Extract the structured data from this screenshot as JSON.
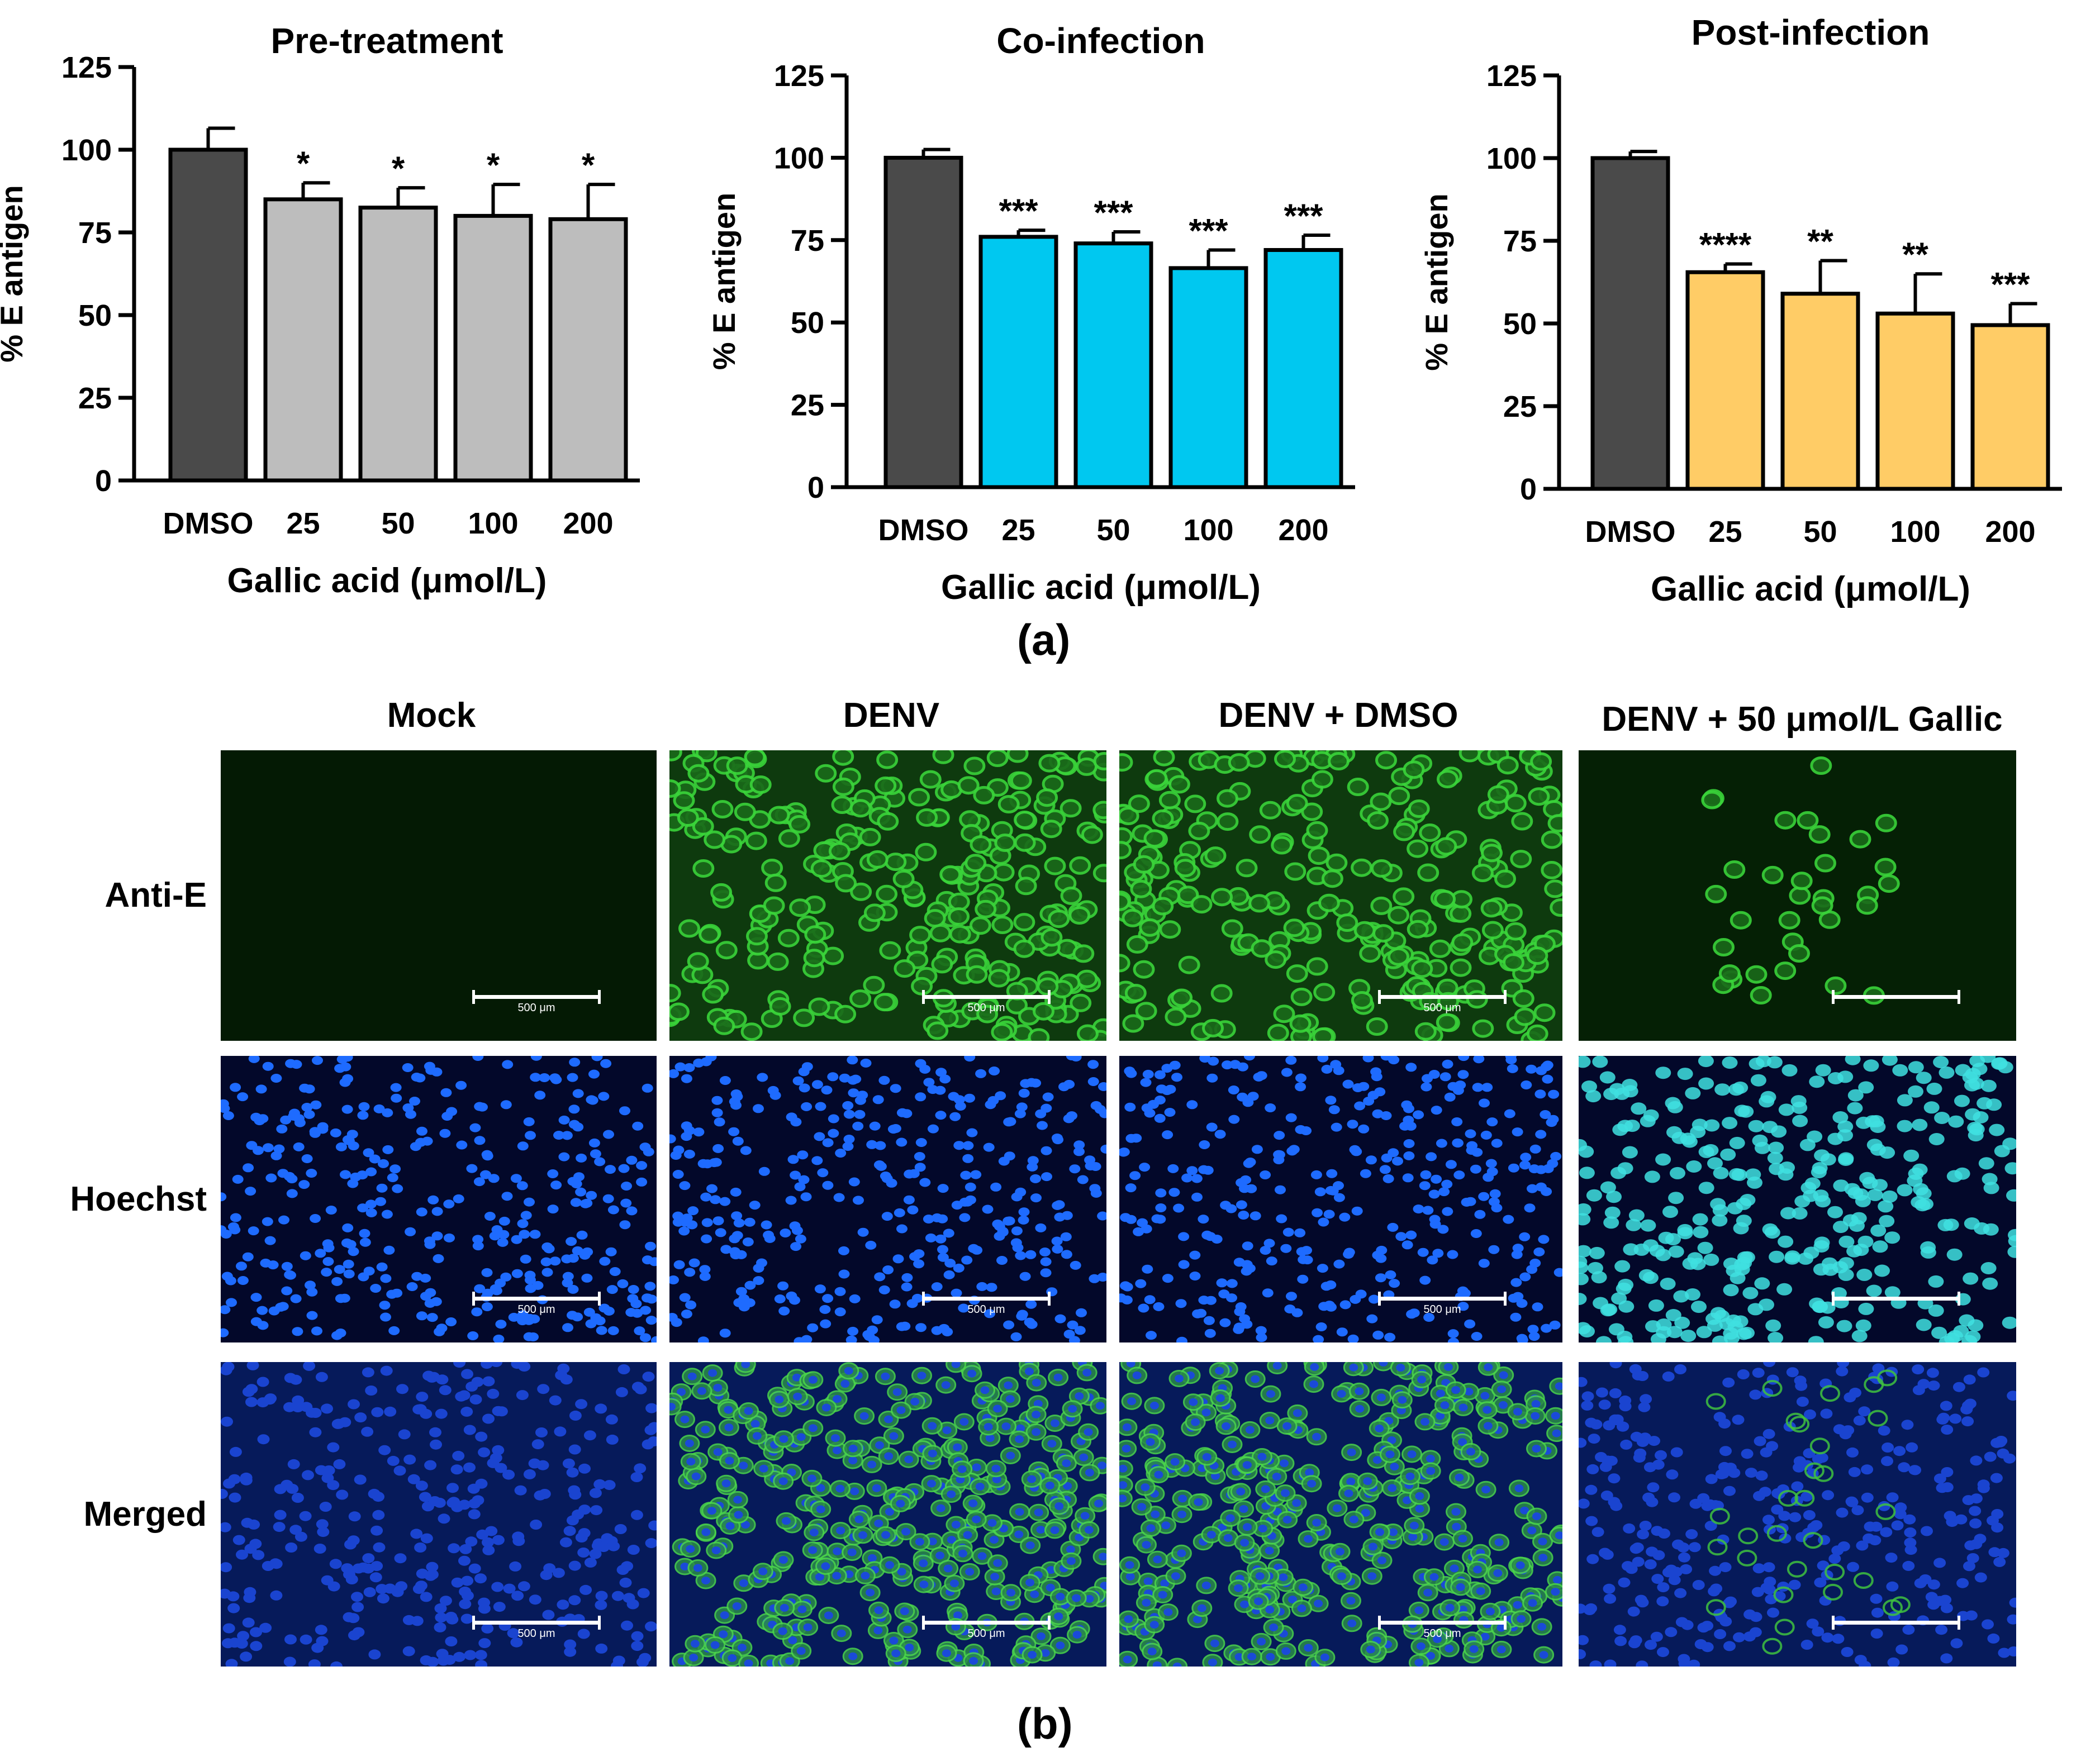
{
  "chart_data": [
    {
      "type": "bar",
      "title": "Pre-treatment",
      "xlabel": "Gallic acid (μmol/L)",
      "ylabel": "% E antigen",
      "categories": [
        "DMSO",
        "25",
        "50",
        "100",
        "200"
      ],
      "values": [
        100,
        85,
        82.5,
        80,
        79
      ],
      "errors": [
        6.5,
        5,
        6,
        9.5,
        10.5
      ],
      "significance": [
        "",
        "*",
        "*",
        "*",
        "*"
      ],
      "ylim": [
        0,
        125
      ],
      "yticks": [
        "0",
        "25",
        "50",
        "75",
        "100",
        "125"
      ],
      "colors": [
        "#4a4a4a",
        "#bdbdbd",
        "#bdbdbd",
        "#bdbdbd",
        "#bdbdbd"
      ]
    },
    {
      "type": "bar",
      "title": "Co-infection",
      "xlabel": "Gallic acid (μmol/L)",
      "ylabel": "% E antigen",
      "categories": [
        "DMSO",
        "25",
        "50",
        "100",
        "200"
      ],
      "values": [
        100,
        76,
        74,
        66.5,
        72
      ],
      "errors": [
        2.5,
        2,
        3.5,
        5.5,
        4.5
      ],
      "significance": [
        "",
        "***",
        "***",
        "***",
        "***"
      ],
      "ylim": [
        0,
        125
      ],
      "yticks": [
        "0",
        "25",
        "50",
        "75",
        "100",
        "125"
      ],
      "colors": [
        "#4a4a4a",
        "#00c8f0",
        "#00c8f0",
        "#00c8f0",
        "#00c8f0"
      ]
    },
    {
      "type": "bar",
      "title": "Post-infection",
      "xlabel": "Gallic acid (μmol/L)",
      "ylabel": "% E antigen",
      "categories": [
        "DMSO",
        "25",
        "50",
        "100",
        "200"
      ],
      "values": [
        100,
        65.5,
        59,
        53,
        49.5
      ],
      "errors": [
        2,
        2.5,
        10,
        12,
        6.5
      ],
      "significance": [
        "",
        "****",
        "**",
        "**",
        "***"
      ],
      "ylim": [
        0,
        125
      ],
      "yticks": [
        "0",
        "25",
        "50",
        "75",
        "100",
        "125"
      ],
      "colors": [
        "#4a4a4a",
        "#ffcc66",
        "#ffcc66",
        "#ffcc66",
        "#ffcc66"
      ]
    }
  ],
  "panel_a_label": "(a)",
  "panel_b_label": "(b)",
  "microscopy": {
    "columns": [
      "Mock",
      "DENV",
      "DENV + DMSO",
      "DENV + 50 μmol/L Gallic"
    ],
    "rows": [
      "Anti-E",
      "Hoechst",
      "Merged"
    ],
    "scale_bar_text": "500 μm",
    "colors": {
      "anti_e_background": "#052005",
      "anti_e_cells": "#3ad43a",
      "hoechst_background": "#03082a",
      "hoechst_nuclei": "#1e6bff",
      "hoechst_nuclei_gallic": "#3fe0e0",
      "merged_background": "#061a5a"
    }
  }
}
